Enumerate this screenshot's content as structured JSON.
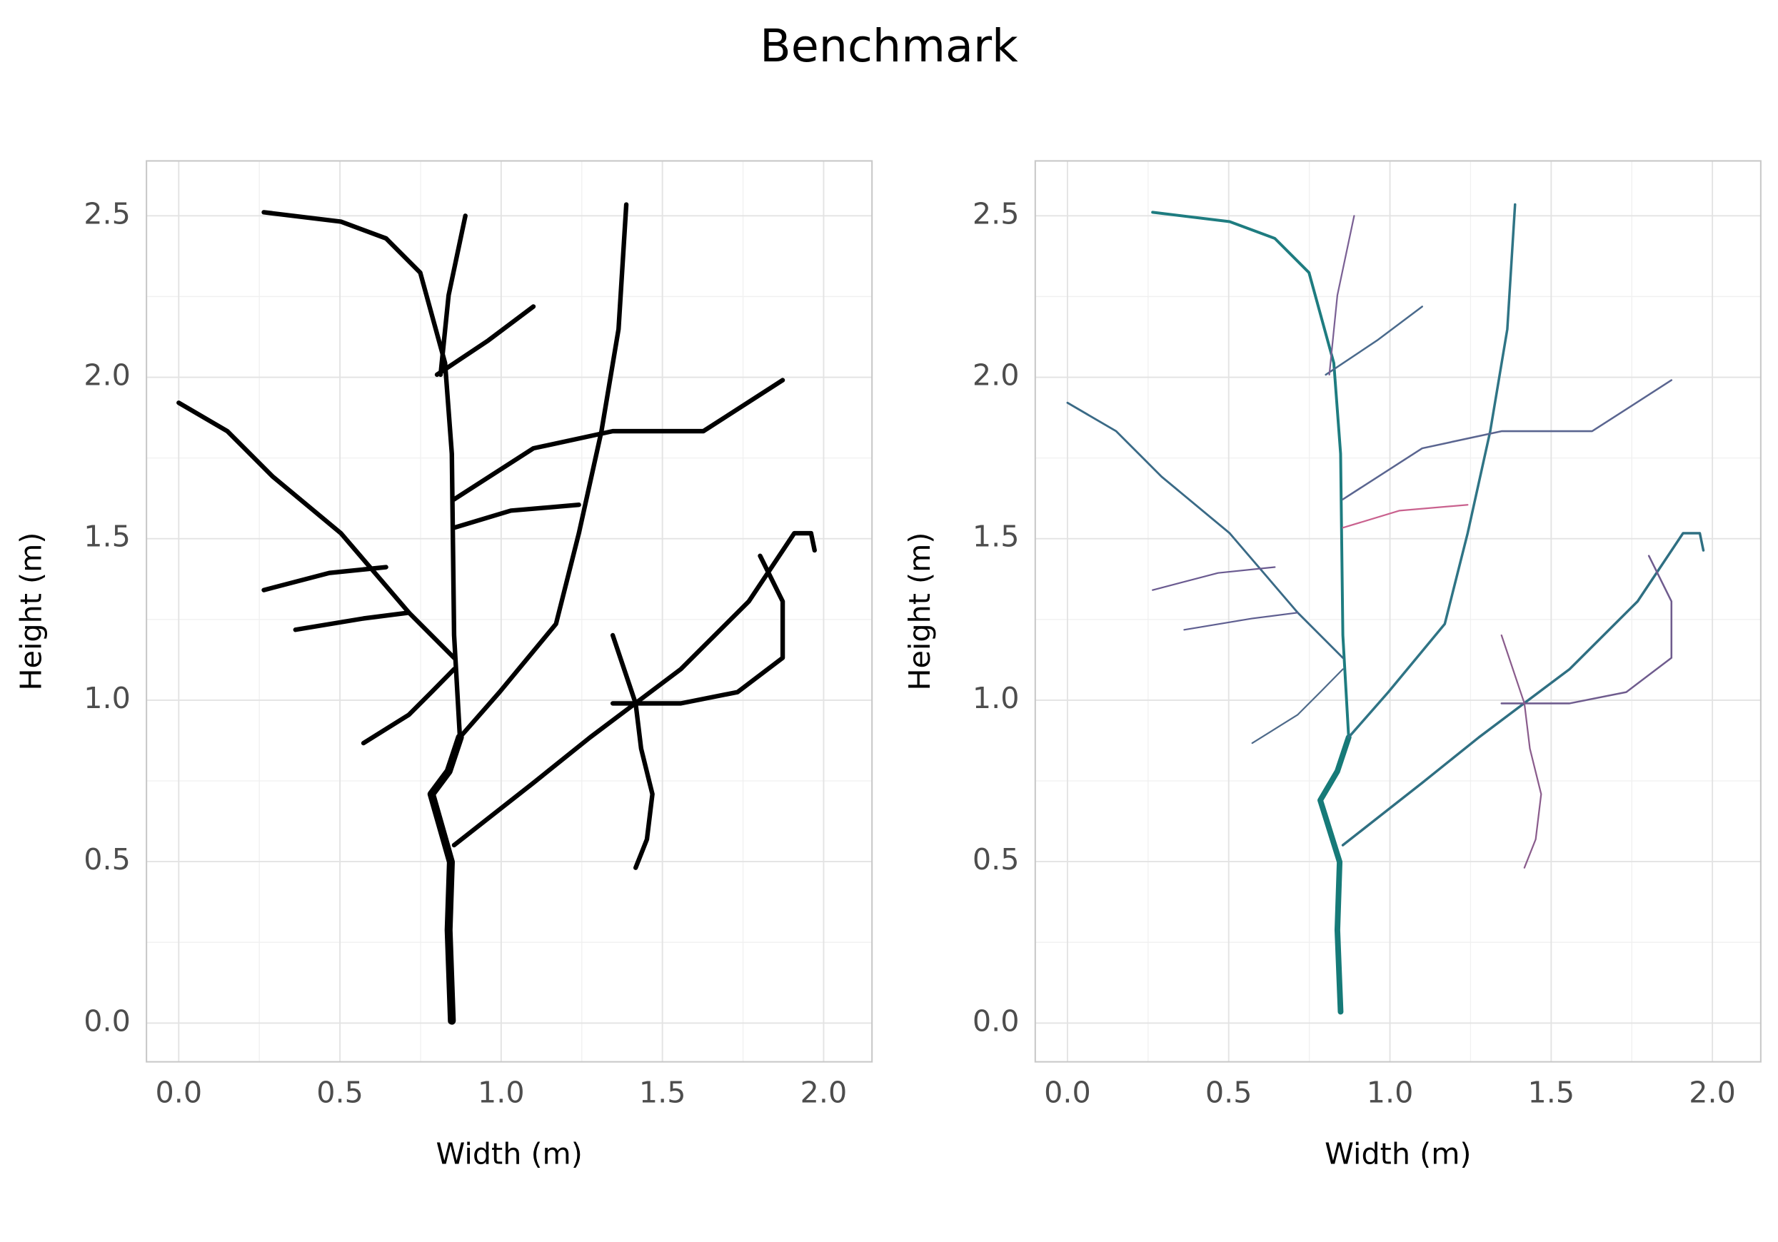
{
  "title": "Benchmark",
  "chart_data": [
    {
      "type": "line",
      "xlabel": "Width (m)",
      "ylabel": "Height (m)",
      "xlim": [
        -0.1,
        2.15
      ],
      "ylim": [
        -0.12,
        2.67
      ],
      "xticks": [
        {
          "value": 0,
          "label": "0.0"
        },
        0.5,
        {
          "value": 1,
          "label": "1.0"
        },
        1.5,
        {
          "value": 2,
          "label": "2.0"
        }
      ],
      "yticks": [
        {
          "value": 0,
          "label": "0.0"
        },
        0.5,
        {
          "value": 1,
          "label": "1.0"
        },
        1.5,
        {
          "value": 2,
          "label": "2.0"
        },
        2.5
      ],
      "grid": true,
      "series": [
        {
          "color": "#000000",
          "width": 7,
          "x": [
            0.847,
            0.837,
            0.844,
            0.784,
            0.837,
            0.872
          ],
          "values": [
            0.007,
            0.288,
            0.499,
            0.709,
            0.78,
            0.885
          ]
        },
        {
          "color": "#000000",
          "width": 4,
          "x": [
            0.872,
            0.854,
            0.847,
            0.826,
            0.749,
            0.643,
            0.503,
            0.264
          ],
          "values": [
            0.885,
            1.201,
            1.763,
            2.044,
            2.324,
            2.43,
            2.482,
            2.511
          ]
        },
        {
          "color": "#000000",
          "width": 4,
          "x": [
            0.854,
            1.1,
            1.276,
            1.557,
            1.768,
            1.909,
            1.961,
            1.972
          ],
          "values": [
            0.551,
            0.744,
            0.885,
            1.096,
            1.306,
            1.517,
            1.517,
            1.464
          ]
        },
        {
          "color": "#000000",
          "width": 4,
          "x": [
            0.872,
            0.995,
            1.17,
            1.241,
            1.311,
            1.364,
            1.388
          ],
          "values": [
            0.885,
            1.025,
            1.236,
            1.517,
            1.833,
            2.149,
            2.535
          ]
        },
        {
          "color": "#000000",
          "width": 4,
          "x": [
            0.854,
            0.714,
            0.503,
            0.292,
            0.151,
            0
          ],
          "values": [
            1.131,
            1.271,
            1.517,
            1.692,
            1.833,
            1.921
          ]
        },
        {
          "color": "#000000",
          "width": 4,
          "x": [
            0.854,
            1.1,
            1.346,
            1.627,
            1.873
          ],
          "values": [
            1.622,
            1.78,
            1.833,
            1.833,
            1.991
          ]
        },
        {
          "color": "#000000",
          "width": 4,
          "x": [
            0.801,
            0.96,
            1.1
          ],
          "values": [
            2.008,
            2.114,
            2.219
          ]
        },
        {
          "color": "#000000",
          "width": 4,
          "x": [
            1.346,
            1.557,
            1.733,
            1.873,
            1.873,
            1.803
          ],
          "values": [
            0.99,
            0.99,
            1.025,
            1.131,
            1.306,
            1.447
          ]
        },
        {
          "color": "#000000",
          "width": 4,
          "x": [
            0.854,
            0.784,
            0.714,
            0.573
          ],
          "values": [
            1.096,
            1.025,
            0.955,
            0.867
          ]
        },
        {
          "color": "#000000",
          "width": 4,
          "x": [
            1.346,
            1.417,
            1.434,
            1.469,
            1.452,
            1.417
          ],
          "values": [
            1.201,
            0.99,
            0.85,
            0.709,
            0.569,
            0.481
          ]
        },
        {
          "color": "#000000",
          "width": 4,
          "x": [
            0.362,
            0.573,
            0.714
          ],
          "values": [
            1.218,
            1.253,
            1.271
          ]
        },
        {
          "color": "#000000",
          "width": 4,
          "x": [
            0.264,
            0.467,
            0.643
          ],
          "values": [
            1.341,
            1.394,
            1.412
          ]
        },
        {
          "color": "#000000",
          "width": 4,
          "x": [
            0.812,
            0.837,
            0.889
          ],
          "values": [
            2.008,
            2.254,
            2.5
          ]
        },
        {
          "color": "#000000",
          "width": 4,
          "x": [
            0.854,
            1.03,
            1.241
          ],
          "values": [
            1.534,
            1.587,
            1.605
          ]
        }
      ]
    },
    {
      "type": "line",
      "xlabel": "Width (m)",
      "ylabel": "Height (m)",
      "xlim": [
        -0.1,
        2.15
      ],
      "ylim": [
        -0.12,
        2.67
      ],
      "xticks": [
        {
          "value": 0,
          "label": "0.0"
        },
        0.5,
        {
          "value": 1,
          "label": "1.0"
        },
        1.5,
        {
          "value": 2,
          "label": "2.0"
        }
      ],
      "yticks": [
        {
          "value": 0,
          "label": "0.0"
        },
        0.5,
        {
          "value": 1,
          "label": "1.0"
        },
        1.5,
        {
          "value": 2,
          "label": "2.0"
        },
        2.5
      ],
      "grid": true,
      "series": [
        {
          "color": "#167a78",
          "width": 5,
          "x": [
            0.847,
            0.837,
            0.844,
            0.784,
            0.837,
            0.872
          ],
          "values": [
            0.035,
            0.288,
            0.499,
            0.69,
            0.78,
            0.885
          ]
        },
        {
          "color": "#1e7c80",
          "width": 2.5,
          "x": [
            0.872,
            0.854,
            0.847,
            0.826,
            0.749,
            0.643,
            0.503,
            0.264
          ],
          "values": [
            0.885,
            1.201,
            1.763,
            2.044,
            2.324,
            2.43,
            2.482,
            2.511
          ]
        },
        {
          "color": "#2f6f82",
          "width": 2.2,
          "x": [
            0.854,
            1.1,
            1.276,
            1.557,
            1.768,
            1.909,
            1.961,
            1.972
          ],
          "values": [
            0.551,
            0.744,
            0.885,
            1.096,
            1.306,
            1.517,
            1.517,
            1.464
          ]
        },
        {
          "color": "#2f7485",
          "width": 2.2,
          "x": [
            0.872,
            0.995,
            1.17,
            1.241,
            1.311,
            1.364,
            1.388
          ],
          "values": [
            0.885,
            1.025,
            1.236,
            1.517,
            1.833,
            2.149,
            2.535
          ]
        },
        {
          "color": "#3a6a86",
          "width": 1.8,
          "x": [
            0.854,
            0.714,
            0.503,
            0.292,
            0.151,
            0
          ],
          "values": [
            1.131,
            1.271,
            1.517,
            1.692,
            1.833,
            1.921
          ]
        },
        {
          "color": "#5a6590",
          "width": 1.6,
          "x": [
            0.854,
            1.1,
            1.346,
            1.627,
            1.873
          ],
          "values": [
            1.622,
            1.78,
            1.833,
            1.833,
            1.991
          ]
        },
        {
          "color": "#4a6a8c",
          "width": 1.6,
          "x": [
            0.801,
            0.96,
            1.1
          ],
          "values": [
            2.008,
            2.114,
            2.219
          ]
        },
        {
          "color": "#6f5c8e",
          "width": 1.6,
          "x": [
            1.346,
            1.557,
            1.733,
            1.873,
            1.873,
            1.803
          ],
          "values": [
            0.99,
            0.99,
            1.025,
            1.131,
            1.306,
            1.447
          ]
        },
        {
          "color": "#4e6a8a",
          "width": 1.4,
          "x": [
            0.854,
            0.784,
            0.714,
            0.573
          ],
          "values": [
            1.096,
            1.025,
            0.955,
            0.867
          ]
        },
        {
          "color": "#8a5c8c",
          "width": 1.4,
          "x": [
            1.346,
            1.417,
            1.434,
            1.469,
            1.452,
            1.417
          ],
          "values": [
            1.201,
            0.99,
            0.85,
            0.709,
            0.569,
            0.481
          ]
        },
        {
          "color": "#5e5e90",
          "width": 1.4,
          "x": [
            0.362,
            0.573,
            0.714
          ],
          "values": [
            1.218,
            1.253,
            1.271
          ]
        },
        {
          "color": "#6a5a90",
          "width": 1.4,
          "x": [
            0.264,
            0.467,
            0.643
          ],
          "values": [
            1.341,
            1.394,
            1.412
          ]
        },
        {
          "color": "#7a6094",
          "width": 1.4,
          "x": [
            0.812,
            0.837,
            0.889
          ],
          "values": [
            2.008,
            2.254,
            2.5
          ]
        },
        {
          "color": "#c9618e",
          "width": 1.4,
          "x": [
            0.854,
            1.03,
            1.241
          ],
          "values": [
            1.534,
            1.587,
            1.605
          ]
        }
      ]
    }
  ]
}
